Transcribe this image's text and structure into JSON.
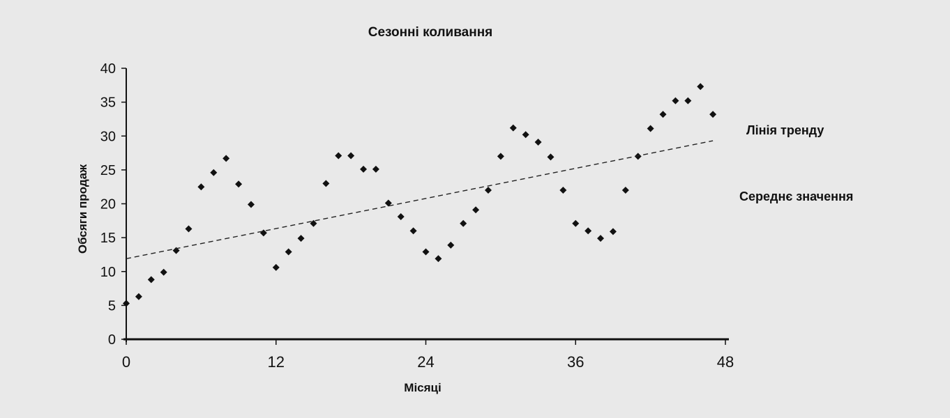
{
  "chart_data": {
    "type": "scatter",
    "title": "Сезонні коливання",
    "xlabel": "Місяці",
    "ylabel": "Обсяги продаж",
    "xlim": [
      0,
      48
    ],
    "ylim": [
      0,
      40
    ],
    "x_ticks": [
      "0",
      "12",
      "24",
      "36",
      "48"
    ],
    "y_ticks": [
      "0",
      "5",
      "10",
      "15",
      "20",
      "25",
      "30",
      "35",
      "40"
    ],
    "grid": false,
    "annotations": [
      "Лінія тренду",
      "Середнє значення"
    ],
    "series": [
      {
        "marker": "diamond",
        "points": [
          [
            0,
            5.3
          ],
          [
            1,
            6.3
          ],
          [
            2,
            8.8
          ],
          [
            3,
            9.9
          ],
          [
            4,
            13.1
          ],
          [
            5,
            16.3
          ],
          [
            6,
            22.5
          ],
          [
            7,
            24.6
          ],
          [
            8,
            26.7
          ],
          [
            9,
            22.9
          ],
          [
            10,
            19.9
          ],
          [
            11,
            15.7
          ],
          [
            12,
            10.6
          ],
          [
            13,
            12.9
          ],
          [
            14,
            14.9
          ],
          [
            15,
            17.1
          ],
          [
            16,
            23.0
          ],
          [
            17,
            27.1
          ],
          [
            18,
            27.1
          ],
          [
            19,
            25.1
          ],
          [
            20,
            25.1
          ],
          [
            21,
            20.1
          ],
          [
            22,
            18.1
          ],
          [
            23,
            16.0
          ],
          [
            24,
            12.9
          ],
          [
            25,
            11.9
          ],
          [
            26,
            13.9
          ],
          [
            27,
            17.1
          ],
          [
            28,
            19.1
          ],
          [
            29,
            22.0
          ],
          [
            30,
            27.0
          ],
          [
            31,
            31.2
          ],
          [
            32,
            30.2
          ],
          [
            33,
            29.1
          ],
          [
            34,
            26.9
          ],
          [
            35,
            22.0
          ],
          [
            36,
            17.1
          ],
          [
            37,
            16.0
          ],
          [
            38,
            14.9
          ],
          [
            39,
            15.9
          ],
          [
            40,
            22.0
          ],
          [
            41,
            27.0
          ],
          [
            42,
            31.1
          ],
          [
            43,
            33.2
          ],
          [
            44,
            35.2
          ],
          [
            45,
            35.2
          ],
          [
            46,
            37.3
          ],
          [
            47,
            33.2
          ]
        ]
      },
      {
        "type": "line",
        "style": "dashed",
        "x": [
          0,
          47
        ],
        "y": [
          11.9,
          29.3
        ]
      }
    ]
  }
}
